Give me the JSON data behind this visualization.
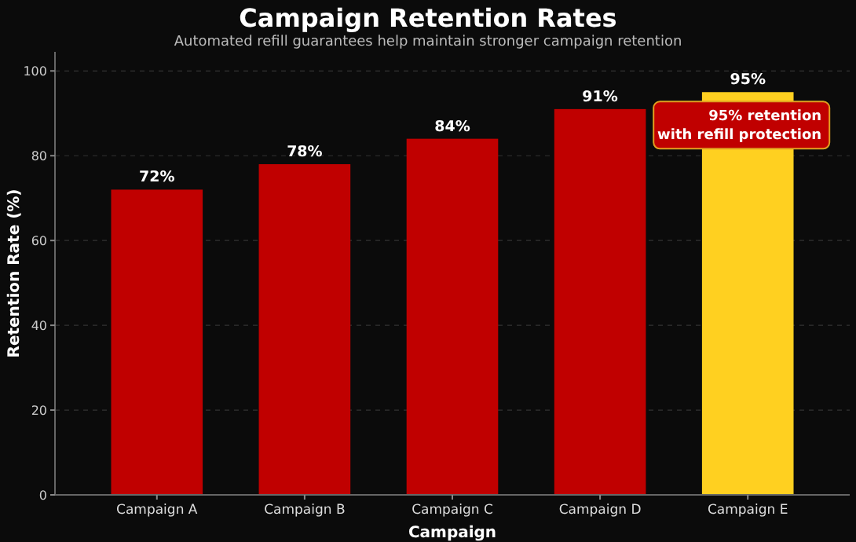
{
  "chart_data": {
    "type": "bar",
    "title": "Campaign Retention Rates",
    "subtitle": "Automated refill guarantees help maintain stronger campaign retention",
    "xlabel": "Campaign",
    "ylabel": "Retention Rate (%)",
    "categories": [
      "Campaign A",
      "Campaign B",
      "Campaign C",
      "Campaign D",
      "Campaign E"
    ],
    "values": [
      72,
      78,
      84,
      91,
      95
    ],
    "colors": [
      "#c00000",
      "#c00000",
      "#c00000",
      "#c00000",
      "#ffd020"
    ],
    "value_labels": [
      "72%",
      "78%",
      "84%",
      "91%",
      "95%"
    ],
    "ylim": [
      0,
      104.5
    ],
    "yticks": [
      0,
      20,
      40,
      60,
      80,
      100
    ],
    "grid": "y",
    "annotations": [
      {
        "text": "95% retention\nwith refill protection",
        "x": "Campaign E",
        "y": 95
      }
    ]
  }
}
